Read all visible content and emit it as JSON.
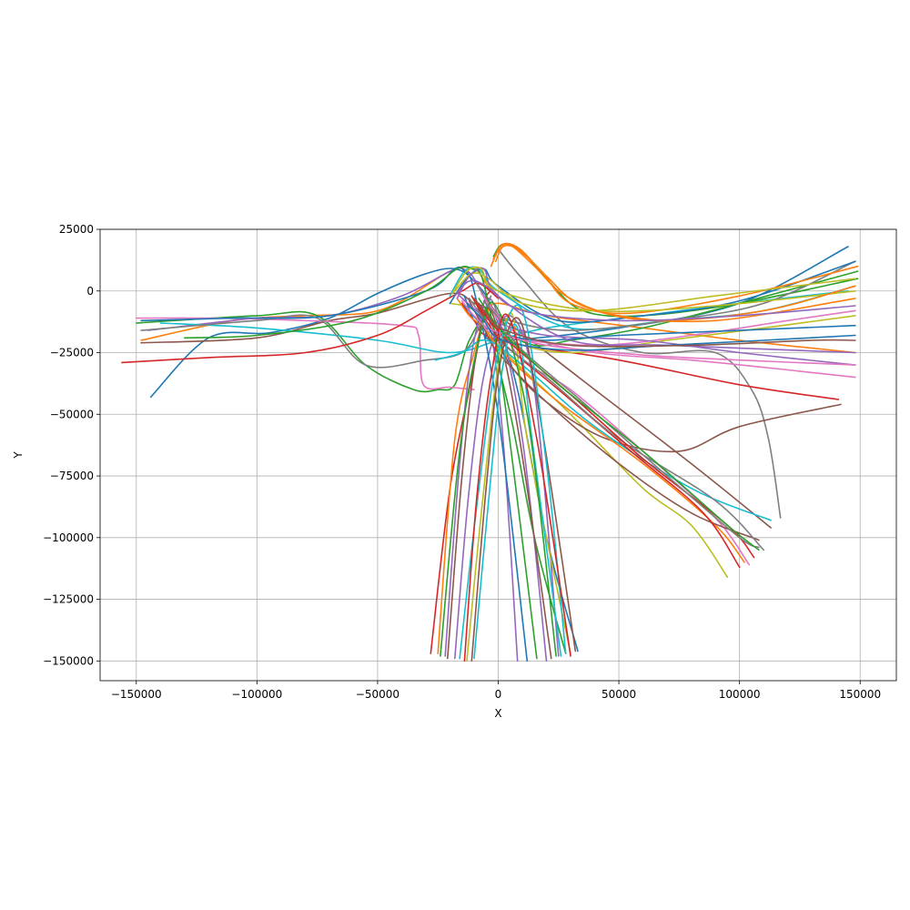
{
  "chart_data": {
    "type": "line",
    "title": "",
    "xlabel": "X",
    "ylabel": "Y",
    "xlim": [
      -165000,
      165000
    ],
    "ylim": [
      -158000,
      25000
    ],
    "xticks": [
      -150000,
      -100000,
      -50000,
      0,
      50000,
      100000,
      150000
    ],
    "xtick_labels": [
      "−150000",
      "−100000",
      "−50000",
      "0",
      "50000",
      "100000",
      "150000"
    ],
    "yticks": [
      25000,
      0,
      -25000,
      -50000,
      -75000,
      -100000,
      -125000,
      -150000
    ],
    "ytick_labels": [
      "25000",
      "0",
      "−25000",
      "−50000",
      "−75000",
      "−100000",
      "−125000",
      "−150000"
    ],
    "grid": true,
    "legend": "none",
    "colors": [
      "#1f77b4",
      "#ff7f0e",
      "#2ca02c",
      "#d62728",
      "#9467bd",
      "#8c564b",
      "#e377c2",
      "#7f7f7f",
      "#bcbd22",
      "#17becf"
    ],
    "series": [
      {
        "x": [
          -144000,
          -120000,
          -95000,
          -70000,
          -50000,
          -30000,
          -18000,
          -10000,
          -2000,
          8000,
          20000,
          33000
        ],
        "y": [
          -43000,
          -19000,
          -17000,
          -11000,
          -1000,
          7000,
          9000,
          4000,
          -8000,
          -40000,
          -100000,
          -146000
        ]
      },
      {
        "x": [
          -148000,
          -110000,
          -80000,
          -55000,
          -40000,
          -20000,
          -10000,
          -5000,
          0
        ],
        "y": [
          -20000,
          -12000,
          -10000,
          -9000,
          -4000,
          8000,
          9000,
          3000,
          -2000
        ]
      },
      {
        "x": [
          -150000,
          -100000,
          -75000,
          -55000,
          -35000,
          -25000,
          -18000,
          -12000,
          -5000,
          5000,
          15000,
          28000
        ],
        "y": [
          -13000,
          -10000,
          -10000,
          -30000,
          -40000,
          -40000,
          -38000,
          -20000,
          -15000,
          -50000,
          -100000,
          -147000
        ]
      },
      {
        "x": [
          -28000,
          -20000,
          -12000,
          -8000,
          -6000,
          -3000,
          0
        ],
        "y": [
          -147000,
          -80000,
          -40000,
          -20000,
          -5000,
          0,
          -2000
        ]
      },
      {
        "x": [
          -145000,
          -100000,
          -70000,
          -40000,
          -20000,
          -15000,
          -10000,
          -4000,
          2000,
          8000
        ],
        "y": [
          -16000,
          -11000,
          -10000,
          -2000,
          8000,
          9000,
          5000,
          -10000,
          -60000,
          -150000
        ]
      },
      {
        "x": [
          -148000,
          -100000,
          -70000,
          -50000,
          -20000,
          -10000,
          0,
          40000,
          80000,
          113000
        ],
        "y": [
          -21000,
          -19000,
          -12000,
          -9000,
          -1000,
          -5000,
          -10000,
          -40000,
          -70000,
          -96000
        ]
      },
      {
        "x": [
          -150000,
          -120000,
          -80000,
          -40000,
          -33000,
          -31000,
          -20000,
          -10000
        ],
        "y": [
          -11000,
          -11000,
          -12000,
          -14000,
          -18000,
          -38000,
          -39000,
          -40000
        ]
      },
      {
        "x": [
          0,
          10000,
          30000,
          60000,
          90000,
          105000,
          112000,
          117000
        ],
        "y": [
          17000,
          5000,
          -15000,
          -25000,
          -25000,
          -40000,
          -60000,
          -92000
        ]
      },
      {
        "x": [
          -20000,
          -10000,
          0,
          30000,
          60000,
          80000,
          95000
        ],
        "y": [
          -5000,
          -8000,
          -22000,
          -50000,
          -80000,
          -95000,
          -116000
        ]
      },
      {
        "x": [
          -140000,
          -100000,
          -50000,
          -20000,
          0,
          20000,
          60000,
          100000,
          145000
        ],
        "y": [
          -13000,
          -15000,
          -20000,
          -25000,
          -20000,
          -15000,
          -10000,
          -5000,
          0
        ]
      },
      {
        "x": [
          -14000,
          -10000,
          -5000,
          0,
          50000,
          100000,
          145000
        ],
        "y": [
          -2000,
          -12000,
          -15000,
          -20000,
          -15000,
          -5000,
          18000
        ]
      },
      {
        "x": [
          -25000,
          -18000,
          -10000,
          -5000,
          0,
          20000,
          60000,
          100000,
          148000
        ],
        "y": [
          -147000,
          -60000,
          -25000,
          -10000,
          -5000,
          -10000,
          -15000,
          -20000,
          -25000
        ]
      },
      {
        "x": [
          -2000,
          2000,
          10000,
          20000,
          35000,
          60000,
          100000,
          149000
        ],
        "y": [
          14000,
          19000,
          16000,
          5000,
          -8000,
          -10000,
          -5000,
          5000
        ]
      },
      {
        "x": [
          -15000,
          -10000,
          0,
          50000,
          100000,
          141000
        ],
        "y": [
          -5000,
          -12000,
          -20000,
          -28000,
          -38000,
          -44000
        ]
      },
      {
        "x": [
          -18000,
          -12000,
          -5000,
          5000,
          15000,
          25000
        ],
        "y": [
          -149000,
          -80000,
          -30000,
          -10000,
          -40000,
          -148000
        ]
      },
      {
        "x": [
          -8000,
          -2000,
          5000,
          20000,
          45000,
          75000,
          100000,
          142000
        ],
        "y": [
          -5000,
          -15000,
          -30000,
          -45000,
          -60000,
          -65000,
          -55000,
          -46000
        ]
      },
      {
        "x": [
          -6000,
          0,
          10000,
          30000,
          60000,
          90000,
          104000
        ],
        "y": [
          -2000,
          -12000,
          -28000,
          -40000,
          -65000,
          -92000,
          -111000
        ]
      },
      {
        "x": [
          -148000,
          -100000,
          -75000,
          -55000,
          -30000,
          -15000,
          -8000,
          -3000
        ],
        "y": [
          -16000,
          -12000,
          -11000,
          -30000,
          -28000,
          -25000,
          -15000,
          -2000
        ]
      },
      {
        "x": [
          -10000,
          -4000,
          5000,
          30000,
          70000,
          110000,
          148000
        ],
        "y": [
          -4000,
          -10000,
          -20000,
          -25000,
          -20000,
          -15000,
          -10000
        ]
      },
      {
        "x": [
          -20000,
          -14000,
          -8000,
          0,
          30000,
          70000,
          110000,
          148000
        ],
        "y": [
          -2000,
          8000,
          9000,
          0,
          -15000,
          -12000,
          -8000,
          2000
        ]
      },
      {
        "x": [
          -148000,
          -110000,
          -70000,
          -30000,
          -18000,
          -14000,
          -10000,
          0,
          12000
        ],
        "y": [
          -12000,
          -11000,
          -10000,
          0,
          9000,
          8000,
          0,
          -50000,
          -150000
        ]
      },
      {
        "x": [
          -17000,
          -12000,
          -6000,
          2000,
          25000,
          60000,
          90000,
          102000
        ],
        "y": [
          -3000,
          -10000,
          -15000,
          -25000,
          -45000,
          -70000,
          -95000,
          -110000
        ]
      },
      {
        "x": [
          -5000,
          0,
          15000,
          30000,
          60000,
          100000,
          149000
        ],
        "y": [
          -8000,
          -15000,
          -22000,
          -20000,
          -15000,
          -5000,
          8000
        ]
      },
      {
        "x": [
          -156000,
          -120000,
          -80000,
          -50000,
          -30000,
          -15000,
          -8000,
          0
        ],
        "y": [
          -29000,
          -27000,
          -25000,
          -18000,
          -8000,
          0,
          3000,
          -3000
        ]
      },
      {
        "x": [
          -22000,
          -16000,
          -10000,
          -2000,
          10000,
          20000
        ],
        "y": [
          -148000,
          -70000,
          -20000,
          -5000,
          -60000,
          -150000
        ]
      },
      {
        "x": [
          -12000,
          -6000,
          0,
          20000,
          50000,
          80000,
          108000
        ],
        "y": [
          -4000,
          -15000,
          -25000,
          -45000,
          -70000,
          -90000,
          -101000
        ]
      },
      {
        "x": [
          -15000,
          -8000,
          0,
          40000,
          80000,
          120000,
          148000
        ],
        "y": [
          -3000,
          -10000,
          -18000,
          -22000,
          -18000,
          -12000,
          -8000
        ]
      },
      {
        "x": [
          -9000,
          -3000,
          5000,
          30000,
          70000,
          110000,
          148000
        ],
        "y": [
          3000,
          -6000,
          -12000,
          -16000,
          -12000,
          -5000,
          12000
        ]
      },
      {
        "x": [
          -13000,
          -7000,
          0,
          6000,
          12000,
          30000
        ],
        "y": [
          -150000,
          -90000,
          -30000,
          -10000,
          -60000,
          -147000
        ]
      },
      {
        "x": [
          -26000,
          -15000,
          -5000,
          10000,
          40000,
          80000,
          113000
        ],
        "y": [
          -28000,
          -25000,
          -20000,
          -30000,
          -55000,
          -80000,
          -93000
        ]
      },
      {
        "x": [
          -20000,
          -13000,
          -6000,
          0,
          25000,
          60000,
          100000,
          148000
        ],
        "y": [
          -5000,
          5000,
          9000,
          2000,
          -12000,
          -10000,
          -4000,
          12000
        ]
      },
      {
        "x": [
          -1000,
          2000,
          8000,
          18000,
          30000,
          55000,
          100000,
          149000
        ],
        "y": [
          12000,
          18000,
          17000,
          8000,
          -5000,
          -9000,
          -2000,
          10000
        ]
      },
      {
        "x": [
          -130000,
          -100000,
          -60000,
          -30000,
          -17000,
          -11000,
          -6000,
          2000,
          16000
        ],
        "y": [
          -19000,
          -18000,
          -12000,
          0,
          9000,
          9000,
          3000,
          -40000,
          -149000
        ]
      },
      {
        "x": [
          -11000,
          -5000,
          3000,
          25000,
          55000,
          85000,
          100000
        ],
        "y": [
          -2000,
          -12000,
          -22000,
          -40000,
          -65000,
          -90000,
          -112000
        ]
      },
      {
        "x": [
          -16000,
          -9000,
          -3000,
          20000,
          60000,
          100000,
          148000
        ],
        "y": [
          -2000,
          -8000,
          -12000,
          -18000,
          -20000,
          -25000,
          -30000
        ]
      },
      {
        "x": [
          -21000,
          -15000,
          -9000,
          -3000,
          8000,
          22000
        ],
        "y": [
          -149000,
          -75000,
          -25000,
          -8000,
          -55000,
          -149000
        ]
      },
      {
        "x": [
          -7000,
          0,
          10000,
          40000,
          80000,
          120000,
          148000
        ],
        "y": [
          -1000,
          -10000,
          -18000,
          -25000,
          -28000,
          -32000,
          -35000
        ]
      },
      {
        "x": [
          -12000,
          -7000,
          0,
          20000,
          50000,
          90000,
          110000
        ],
        "y": [
          -3000,
          -10000,
          -20000,
          -35000,
          -60000,
          -85000,
          -105000
        ]
      },
      {
        "x": [
          -18000,
          -11000,
          -4000,
          10000,
          40000,
          90000,
          148000
        ],
        "y": [
          0,
          7000,
          5000,
          -5000,
          -8000,
          -2000,
          5000
        ]
      },
      {
        "x": [
          -10000,
          -4000,
          2000,
          8000,
          14000,
          26000
        ],
        "y": [
          -149000,
          -85000,
          -30000,
          -15000,
          -60000,
          -148000
        ]
      },
      {
        "x": [
          -14000,
          -6000,
          4000,
          20000,
          50000,
          100000,
          148000
        ],
        "y": [
          -6000,
          -14000,
          -18000,
          -20000,
          -18000,
          -16000,
          -14000
        ]
      },
      {
        "x": [
          -3000,
          1000,
          6000,
          15000,
          28000,
          50000,
          90000,
          148000
        ],
        "y": [
          10000,
          18000,
          18000,
          10000,
          -2000,
          -10000,
          -12000,
          -3000
        ]
      },
      {
        "x": [
          -24000,
          -16000,
          -8000,
          -1000,
          12000,
          24000
        ],
        "y": [
          -148000,
          -65000,
          -20000,
          -6000,
          -50000,
          -148000
        ]
      },
      {
        "x": [
          -9000,
          -2000,
          6000,
          30000,
          60000,
          95000,
          106000
        ],
        "y": [
          -5000,
          -14000,
          -22000,
          -42000,
          -68000,
          -95000,
          -108000
        ]
      },
      {
        "x": [
          -17000,
          -12000,
          -6000,
          0,
          30000,
          70000,
          148000
        ],
        "y": [
          -3000,
          6000,
          9000,
          -2000,
          -20000,
          -22000,
          -25000
        ]
      },
      {
        "x": [
          -11000,
          -5000,
          1000,
          9000,
          18000,
          32000
        ],
        "y": [
          -150000,
          -80000,
          -28000,
          -12000,
          -55000,
          -146000
        ]
      },
      {
        "x": [
          -15000,
          -10000,
          -2000,
          20000,
          60000,
          100000,
          148000
        ],
        "y": [
          -4000,
          -10000,
          -16000,
          -22000,
          -26000,
          -28000,
          -30000
        ]
      },
      {
        "x": [
          -6000,
          1000,
          10000,
          35000,
          70000,
          100000,
          108000
        ],
        "y": [
          -4000,
          -12000,
          -24000,
          -45000,
          -75000,
          -100000,
          -104000
        ]
      },
      {
        "x": [
          -19000,
          -13000,
          -7000,
          0,
          40000,
          90000,
          148000
        ],
        "y": [
          -1000,
          8000,
          9000,
          0,
          -8000,
          -6000,
          0
        ]
      },
      {
        "x": [
          -16000,
          -8000,
          0,
          10000,
          20000,
          28000
        ],
        "y": [
          -149000,
          -80000,
          -25000,
          -8000,
          -70000,
          -147000
        ]
      },
      {
        "x": [
          -13000,
          -6000,
          2000,
          30000,
          70000,
          110000,
          148000
        ],
        "y": [
          -5000,
          -12000,
          -20000,
          -24000,
          -22000,
          -20000,
          -18000
        ]
      },
      {
        "x": [
          -2000,
          2000,
          9000,
          20000,
          35000,
          65000,
          110000,
          148000
        ],
        "y": [
          13000,
          19000,
          17000,
          6000,
          -6000,
          -12000,
          -8000,
          2000
        ]
      },
      {
        "x": [
          -8000,
          -2000,
          5000,
          25000,
          60000,
          95000,
          108000
        ],
        "y": [
          -3000,
          -12000,
          -20000,
          -38000,
          -65000,
          -95000,
          -105000
        ]
      },
      {
        "x": [
          -14000,
          -9000,
          -3000,
          4000,
          16000,
          30000
        ],
        "y": [
          -150000,
          -85000,
          -35000,
          -10000,
          -60000,
          -148000
        ]
      },
      {
        "x": [
          -18000,
          -12000,
          -5000,
          10000,
          50000,
          100000,
          148000
        ],
        "y": [
          -2000,
          4000,
          2000,
          -8000,
          -12000,
          -10000,
          -6000
        ]
      },
      {
        "x": [
          -10000,
          -4000,
          3000,
          30000,
          80000,
          130000,
          148000
        ],
        "y": [
          -3000,
          -10000,
          -16000,
          -22000,
          -22000,
          -20000,
          -20000
        ]
      }
    ]
  }
}
